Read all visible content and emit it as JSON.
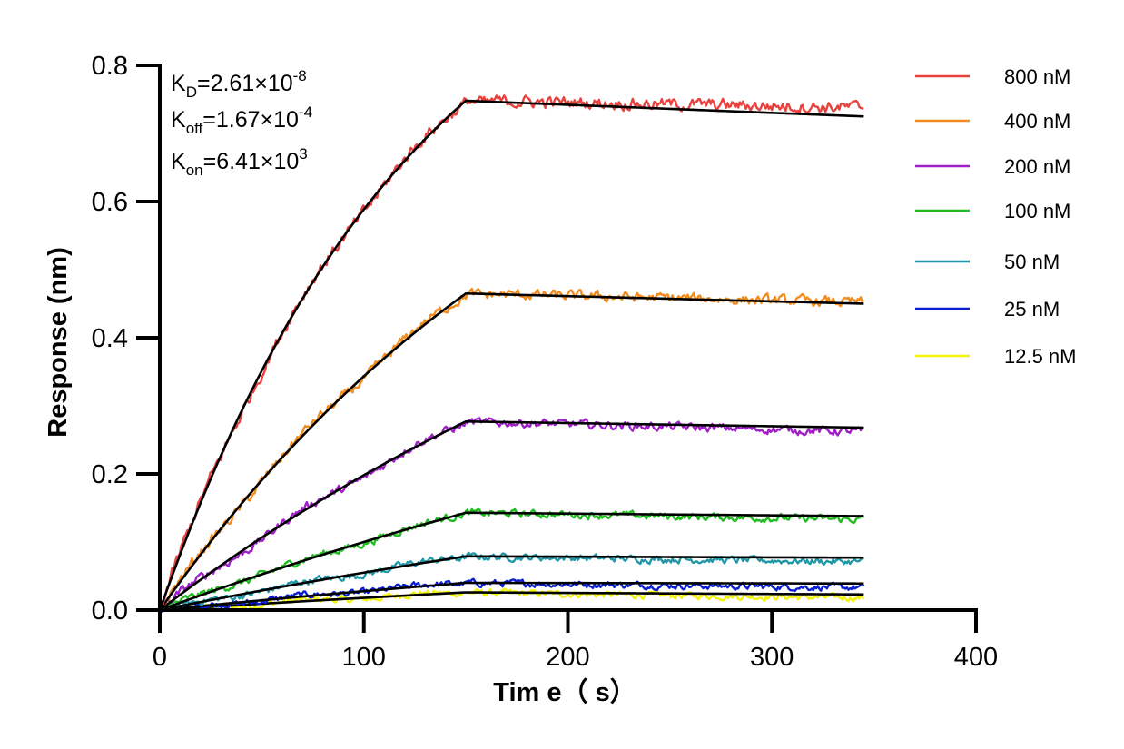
{
  "chart_data": {
    "type": "line",
    "title": "",
    "xlabel": "Tim e（ s）",
    "ylabel": "Response (nm)",
    "xlim": [
      0,
      400
    ],
    "ylim": [
      0,
      0.8
    ],
    "x_ticks": [
      "0",
      "100",
      "200",
      "300",
      "400"
    ],
    "y_ticks": [
      "0.0",
      "0.2",
      "0.4",
      "0.6",
      "0.8"
    ],
    "grid": false,
    "legend_position": "right",
    "association_end": 150,
    "time_end": 345,
    "kinetics": [
      {
        "symbol": "K",
        "subscript": "D",
        "value": "=2.61×10",
        "exponent": "-8"
      },
      {
        "symbol": "K",
        "subscript": "off",
        "value": "=1.67×10",
        "exponent": "-4"
      },
      {
        "symbol": "K",
        "subscript": "on",
        "value": "=6.41×10",
        "exponent": "3"
      }
    ],
    "fit_color": "#000000",
    "series": [
      {
        "name": "800 nM",
        "color": "#e8423f",
        "plateau": 0.748,
        "rate": 0.0079,
        "end": 0.725,
        "data_end": 0.738
      },
      {
        "name": "400 nM",
        "color": "#f28c1e",
        "plateau": 0.465,
        "rate": 0.0045,
        "end": 0.45,
        "data_end": 0.452
      },
      {
        "name": "200 nM",
        "color": "#a020c8",
        "plateau": 0.277,
        "rate": 0.003,
        "end": 0.268,
        "data_end": 0.262
      },
      {
        "name": "100 nM",
        "color": "#22bb22",
        "plateau": 0.143,
        "rate": 0.002,
        "end": 0.138,
        "data_end": 0.133
      },
      {
        "name": "50 nM",
        "color": "#2098a8",
        "plateau": 0.079,
        "rate": 0.0018,
        "end": 0.077,
        "data_end": 0.071
      },
      {
        "name": "25 nM",
        "color": "#0a1ed2",
        "plateau": 0.04,
        "rate": 0.0016,
        "end": 0.039,
        "data_end": 0.033
      },
      {
        "name": "12.5 nM",
        "color": "#f2f20a",
        "plateau": 0.026,
        "rate": 0.0015,
        "end": 0.023,
        "data_end": 0.018
      }
    ]
  }
}
